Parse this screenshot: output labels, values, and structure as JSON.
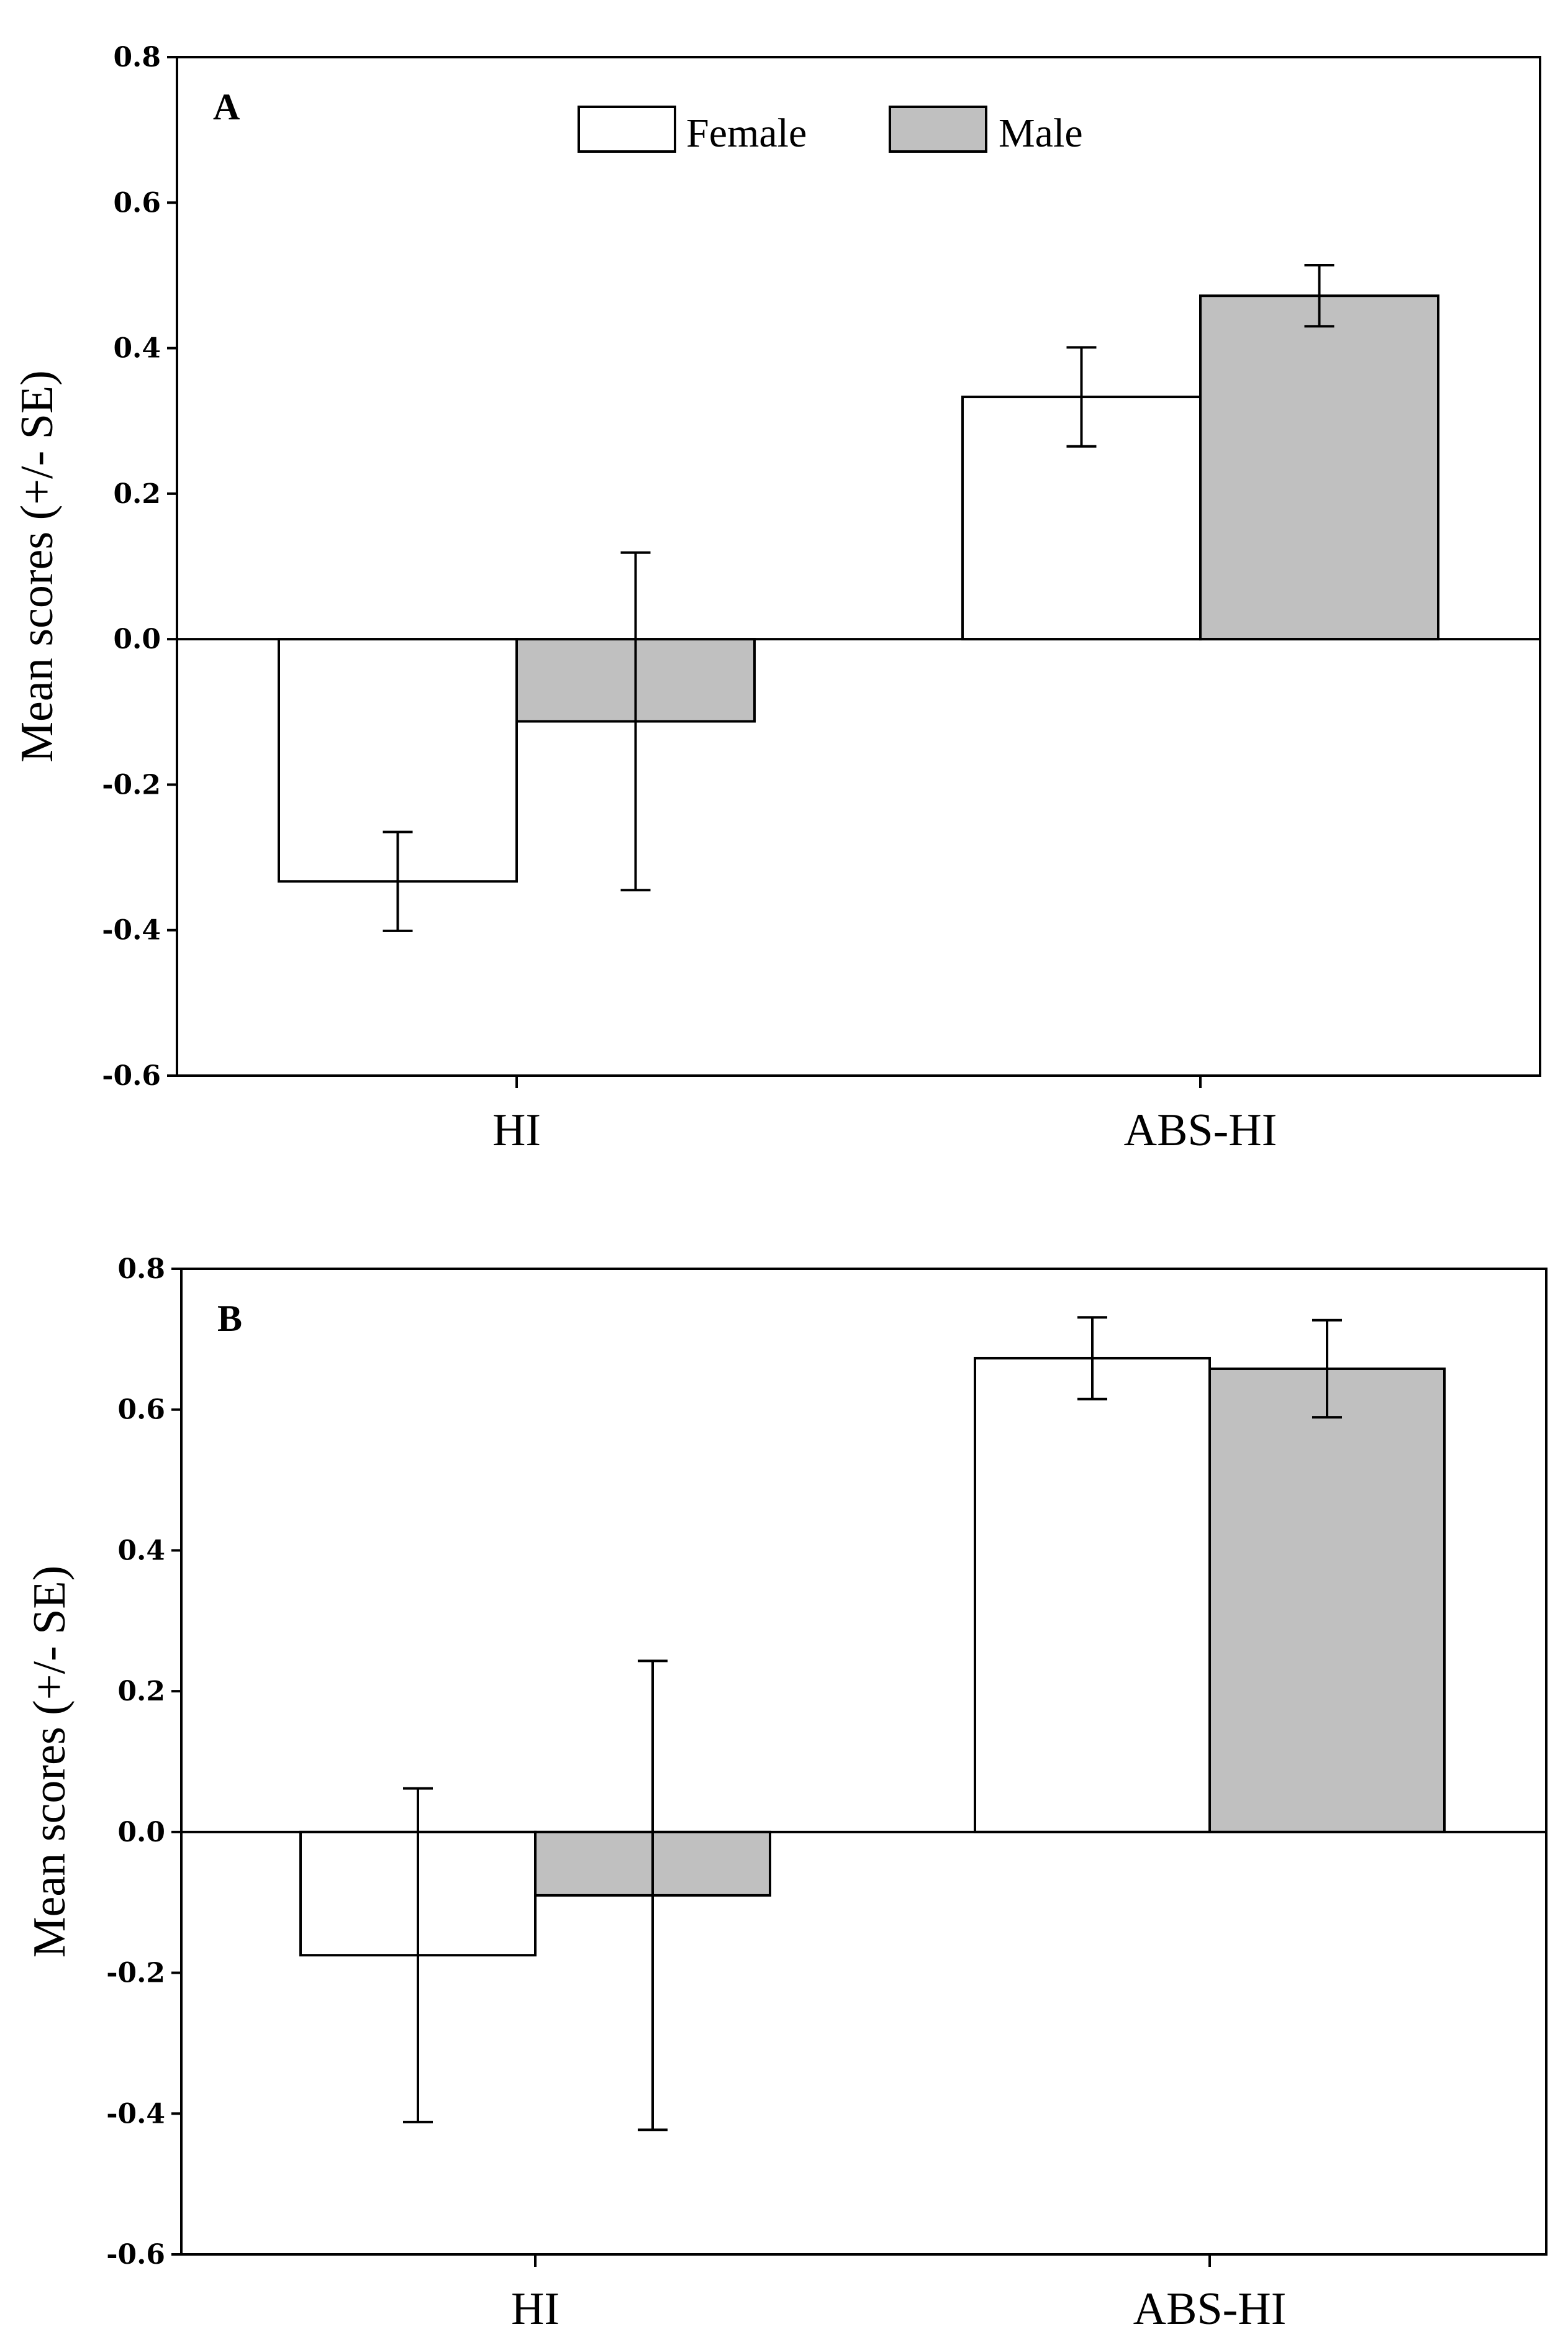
{
  "chart_data": [
    {
      "type": "bar",
      "panel": "A",
      "categories": [
        "HI",
        "ABS-HI"
      ],
      "series": [
        {
          "name": "Female",
          "color": "#ffffff",
          "values": [
            -0.333,
            0.333
          ],
          "se": [
            0.068,
            0.068
          ]
        },
        {
          "name": "Male",
          "color": "#c0c0c0",
          "values": [
            -0.113,
            0.472
          ],
          "se": [
            0.232,
            0.042
          ]
        }
      ],
      "ylabel": "Mean scores (+/- SE)",
      "xlabel": "",
      "ylim": [
        -0.6,
        0.8
      ],
      "yticks": [
        "0.8",
        "0.6",
        "0.4",
        "0.2",
        "0.0",
        "-0.2",
        "-0.4",
        "-0.6"
      ],
      "legend": [
        "Female",
        "Male"
      ],
      "legend_position": "top-center"
    },
    {
      "type": "bar",
      "panel": "B",
      "categories": [
        "HI",
        "ABS-HI"
      ],
      "series": [
        {
          "name": "Female",
          "color": "#ffffff",
          "values": [
            -0.175,
            0.673
          ],
          "se": [
            0.237,
            0.058
          ]
        },
        {
          "name": "Male",
          "color": "#c0c0c0",
          "values": [
            -0.09,
            0.658
          ],
          "se": [
            0.333,
            0.069
          ]
        }
      ],
      "ylabel": "Mean scores (+/- SE)",
      "xlabel": "",
      "ylim": [
        -0.6,
        0.8
      ],
      "yticks": [
        "0.8",
        "0.6",
        "0.4",
        "0.2",
        "0.0",
        "-0.2",
        "-0.4",
        "-0.6"
      ]
    }
  ]
}
